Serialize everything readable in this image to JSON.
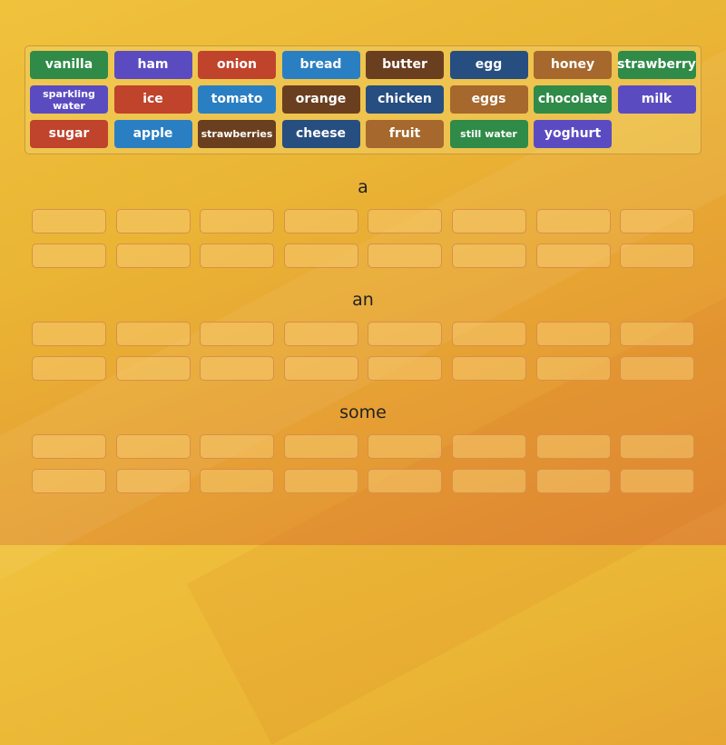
{
  "colors": {
    "green": "#2f8b47",
    "purple": "#5a4cc0",
    "red": "#c0432b",
    "blue": "#2a7fc2",
    "brown": "#6a3f1f",
    "navy": "#264e80",
    "tan": "#a6682d"
  },
  "tiles": [
    [
      {
        "label": "vanilla",
        "color": "green"
      },
      {
        "label": "ham",
        "color": "purple"
      },
      {
        "label": "onion",
        "color": "red"
      },
      {
        "label": "bread",
        "color": "blue"
      },
      {
        "label": "butter",
        "color": "brown"
      },
      {
        "label": "egg",
        "color": "navy"
      },
      {
        "label": "honey",
        "color": "tan"
      },
      {
        "label": "strawberry",
        "color": "green"
      }
    ],
    [
      {
        "label": "sparkling water",
        "color": "purple"
      },
      {
        "label": "ice",
        "color": "red"
      },
      {
        "label": "tomato",
        "color": "blue"
      },
      {
        "label": "orange",
        "color": "brown"
      },
      {
        "label": "chicken",
        "color": "navy"
      },
      {
        "label": "eggs",
        "color": "tan"
      },
      {
        "label": "chocolate",
        "color": "green"
      },
      {
        "label": "milk",
        "color": "purple"
      }
    ],
    [
      {
        "label": "sugar",
        "color": "red"
      },
      {
        "label": "apple",
        "color": "blue"
      },
      {
        "label": "strawberries",
        "color": "brown"
      },
      {
        "label": "cheese",
        "color": "navy"
      },
      {
        "label": "fruit",
        "color": "tan"
      },
      {
        "label": "still water",
        "color": "green"
      },
      {
        "label": "yoghurt",
        "color": "purple"
      }
    ]
  ],
  "groups": [
    {
      "label": "a"
    },
    {
      "label": "an"
    },
    {
      "label": "some"
    }
  ]
}
